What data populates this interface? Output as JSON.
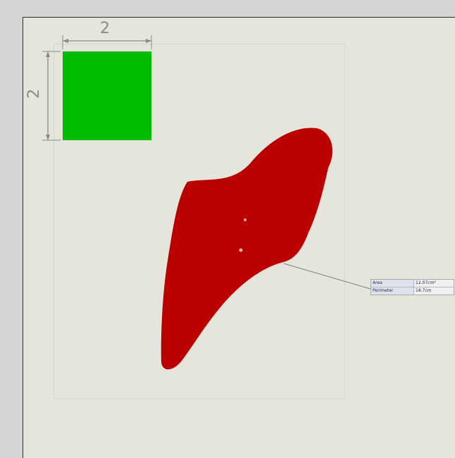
{
  "drawing": {
    "width_dimension": "2",
    "height_dimension": "2",
    "colors": {
      "background": "#e6e5dc",
      "reference_square": "#00bb00",
      "shape_fill": "#bb0000",
      "dimension_lines": "#8a8a86"
    },
    "callout": {
      "rows": [
        {
          "key": "Area",
          "value": "12.07cm²"
        },
        {
          "key": "Perimeter",
          "value": "18.7cm"
        }
      ]
    }
  }
}
